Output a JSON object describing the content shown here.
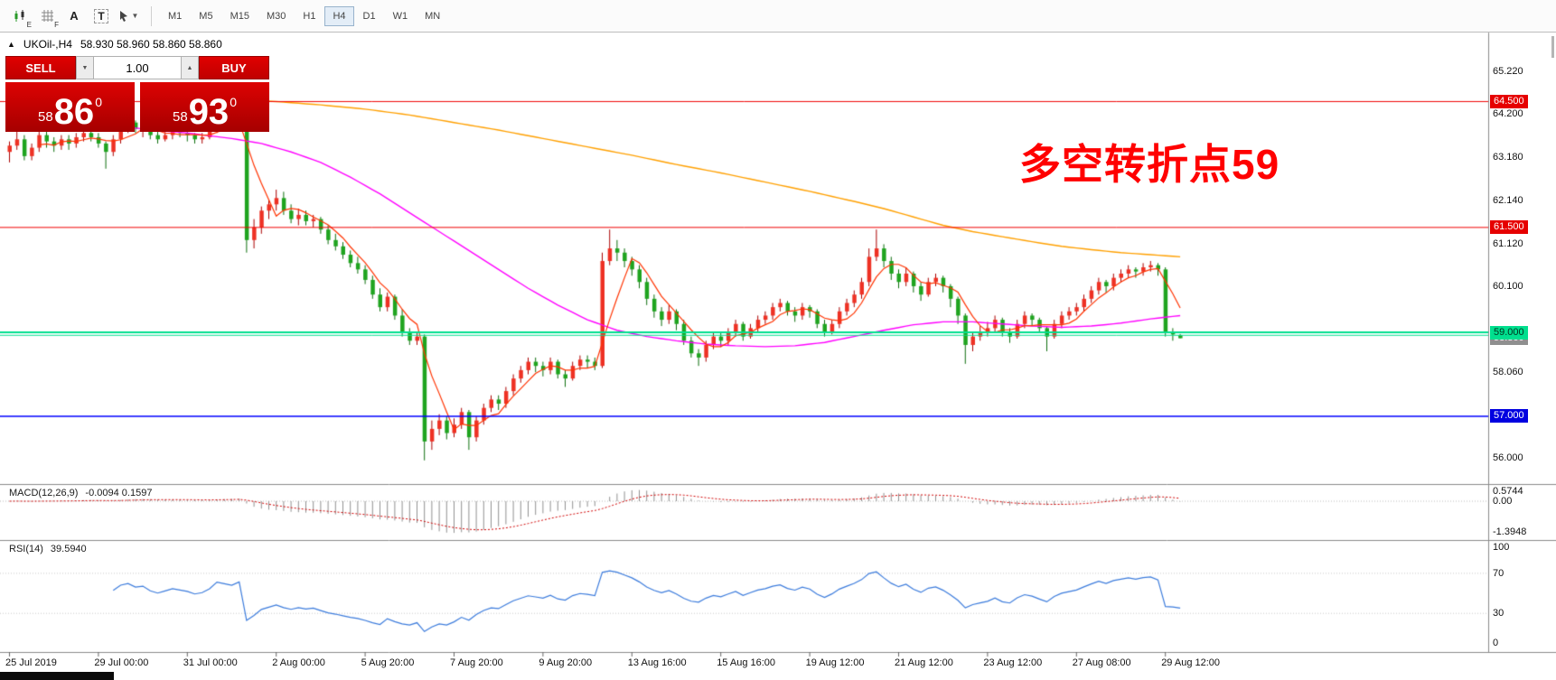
{
  "toolbar": {
    "icons": [
      {
        "id": "chart-candles-icon",
        "badge": "E"
      },
      {
        "id": "grid-icon",
        "badge": "F"
      },
      {
        "id": "text-tool-icon",
        "badge": "A"
      },
      {
        "id": "textbox-tool-icon",
        "badge": "T"
      }
    ],
    "dropdown_caret": "▼",
    "timeframes": [
      "M1",
      "M5",
      "M15",
      "M30",
      "H1",
      "H4",
      "D1",
      "W1",
      "MN"
    ],
    "active_timeframe": "H4"
  },
  "chart": {
    "collapse_icon": "▲",
    "title_symbol": "UKOil-,H4",
    "title_quotes": "58.930 58.960 58.860 58.860",
    "annotation": {
      "text": "多空转折点59",
      "color": "#ff0000"
    },
    "trade_panel": {
      "sell_label": "SELL",
      "buy_label": "BUY",
      "volume": "1.00",
      "step_down": "▼",
      "step_up": "▲",
      "bid": {
        "prefix": "58",
        "big": "86",
        "sup": "0"
      },
      "ask": {
        "prefix": "58",
        "big": "93",
        "sup": "0"
      }
    }
  },
  "chart_data": {
    "type": "candlestick",
    "symbol": "UKOil-",
    "period": "H4",
    "ylim": [
      55.4,
      66.15
    ],
    "bull_color": "#ee3124",
    "bear_color": "#1fa41f",
    "price_axis_labels": [
      {
        "text": "65.220",
        "price": 65.22
      },
      {
        "text": "64.200",
        "price": 64.2
      },
      {
        "text": "63.180",
        "price": 63.18
      },
      {
        "text": "62.140",
        "price": 62.14
      },
      {
        "text": "61.120",
        "price": 61.12
      },
      {
        "text": "60.100",
        "price": 60.1
      },
      {
        "text": "58.060",
        "price": 58.06
      },
      {
        "text": "56.000",
        "price": 56.0
      }
    ],
    "price_badges": [
      {
        "text": "64.500",
        "price": 64.5,
        "bg": "#e60000",
        "fg": "#ffffff"
      },
      {
        "text": "61.500",
        "price": 61.5,
        "bg": "#e60000",
        "fg": "#ffffff"
      },
      {
        "text": "58.860",
        "price": 58.86,
        "bg": "#8f8f8f",
        "fg": "#ffffff"
      },
      {
        "text": "59.000",
        "price": 59.0,
        "bg": "#00df8e",
        "fg": "#00331f"
      },
      {
        "text": "57.000",
        "price": 57.0,
        "bg": "#0000e0",
        "fg": "#ffffff"
      }
    ],
    "hlines": [
      {
        "price": 64.5,
        "color": "#f00000",
        "width": 1
      },
      {
        "price": 61.5,
        "color": "#f00000",
        "width": 1
      },
      {
        "price": 59.0,
        "color": "#00df8e",
        "width": 2
      },
      {
        "price": 58.93,
        "color": "#00df8e",
        "width": 1
      },
      {
        "price": 57.0,
        "color": "#0000ff",
        "width": 1.4
      }
    ],
    "time_labels": [
      "25 Jul 2019",
      "29 Jul 00:00",
      "31 Jul 00:00",
      "2 Aug 00:00",
      "5 Aug 20:00",
      "7 Aug 20:00",
      "9 Aug 20:00",
      "13 Aug 16:00",
      "15 Aug 16:00",
      "19 Aug 12:00",
      "21 Aug 12:00",
      "23 Aug 12:00",
      "27 Aug 08:00",
      "29 Aug 12:00"
    ],
    "candles_per_time_label": 12,
    "candles": [
      [
        63.3,
        63.55,
        63.05,
        63.45
      ],
      [
        63.45,
        64.35,
        63.35,
        63.6
      ],
      [
        63.6,
        63.7,
        63.1,
        63.2
      ],
      [
        63.2,
        63.5,
        63.1,
        63.4
      ],
      [
        63.4,
        63.8,
        63.3,
        63.7
      ],
      [
        63.7,
        63.8,
        63.4,
        63.55
      ],
      [
        63.55,
        63.65,
        63.3,
        63.45
      ],
      [
        63.45,
        63.7,
        63.35,
        63.6
      ],
      [
        63.6,
        63.7,
        63.35,
        63.5
      ],
      [
        63.5,
        63.75,
        63.4,
        63.65
      ],
      [
        63.65,
        63.85,
        63.55,
        63.75
      ],
      [
        63.75,
        63.85,
        63.55,
        63.65
      ],
      [
        63.65,
        63.75,
        63.4,
        63.5
      ],
      [
        63.5,
        63.55,
        62.9,
        63.3
      ],
      [
        63.3,
        63.7,
        63.2,
        63.6
      ],
      [
        63.6,
        63.95,
        63.5,
        63.9
      ],
      [
        63.9,
        64.05,
        63.75,
        64.0
      ],
      [
        64.0,
        64.05,
        63.75,
        63.85
      ],
      [
        63.85,
        63.95,
        63.65,
        63.9
      ],
      [
        63.9,
        63.95,
        63.6,
        63.7
      ],
      [
        63.7,
        63.8,
        63.5,
        63.6
      ],
      [
        63.6,
        63.8,
        63.55,
        63.7
      ],
      [
        63.7,
        63.9,
        63.6,
        63.8
      ],
      [
        63.8,
        63.9,
        63.65,
        63.75
      ],
      [
        63.75,
        63.85,
        63.55,
        63.7
      ],
      [
        63.7,
        63.75,
        63.5,
        63.6
      ],
      [
        63.6,
        63.75,
        63.5,
        63.65
      ],
      [
        63.65,
        63.9,
        63.6,
        63.8
      ],
      [
        63.8,
        64.45,
        63.75,
        64.1
      ],
      [
        64.1,
        64.2,
        63.95,
        64.05
      ],
      [
        64.05,
        64.15,
        63.9,
        64.0
      ],
      [
        64.0,
        64.3,
        63.95,
        64.15
      ],
      [
        64.15,
        64.2,
        60.9,
        61.2
      ],
      [
        61.2,
        61.7,
        61.0,
        61.5
      ],
      [
        61.5,
        62.0,
        61.35,
        61.9
      ],
      [
        61.9,
        62.15,
        61.7,
        62.05
      ],
      [
        62.05,
        62.4,
        61.9,
        62.2
      ],
      [
        62.2,
        62.35,
        61.8,
        61.9
      ],
      [
        61.9,
        62.05,
        61.6,
        61.7
      ],
      [
        61.7,
        61.95,
        61.55,
        61.8
      ],
      [
        61.8,
        61.9,
        61.55,
        61.65
      ],
      [
        61.65,
        61.8,
        61.5,
        61.7
      ],
      [
        61.7,
        61.75,
        61.35,
        61.45
      ],
      [
        61.45,
        61.55,
        61.1,
        61.2
      ],
      [
        61.2,
        61.35,
        60.95,
        61.05
      ],
      [
        61.05,
        61.15,
        60.75,
        60.85
      ],
      [
        60.85,
        60.95,
        60.55,
        60.65
      ],
      [
        60.65,
        60.8,
        60.4,
        60.5
      ],
      [
        60.5,
        60.6,
        60.15,
        60.25
      ],
      [
        60.25,
        60.35,
        59.8,
        59.9
      ],
      [
        59.9,
        60.05,
        59.5,
        59.6
      ],
      [
        59.6,
        59.95,
        59.5,
        59.85
      ],
      [
        59.85,
        59.9,
        59.3,
        59.4
      ],
      [
        59.4,
        59.55,
        58.9,
        59.0
      ],
      [
        59.0,
        59.1,
        58.7,
        58.8
      ],
      [
        58.8,
        59.0,
        58.7,
        58.9
      ],
      [
        58.9,
        58.95,
        55.95,
        56.4
      ],
      [
        56.4,
        56.9,
        56.2,
        56.7
      ],
      [
        56.7,
        57.05,
        56.55,
        56.9
      ],
      [
        56.9,
        57.0,
        56.45,
        56.6
      ],
      [
        56.6,
        56.95,
        56.5,
        56.8
      ],
      [
        56.8,
        57.2,
        56.7,
        57.1
      ],
      [
        57.1,
        57.15,
        56.2,
        56.5
      ],
      [
        56.5,
        57.0,
        56.4,
        56.9
      ],
      [
        56.9,
        57.3,
        56.8,
        57.2
      ],
      [
        57.2,
        57.5,
        57.1,
        57.4
      ],
      [
        57.4,
        57.5,
        57.15,
        57.3
      ],
      [
        57.3,
        57.7,
        57.2,
        57.6
      ],
      [
        57.6,
        58.0,
        57.5,
        57.9
      ],
      [
        57.9,
        58.2,
        57.8,
        58.1
      ],
      [
        58.1,
        58.4,
        58.0,
        58.3
      ],
      [
        58.3,
        58.4,
        58.05,
        58.2
      ],
      [
        58.2,
        58.3,
        57.95,
        58.1
      ],
      [
        58.1,
        58.4,
        58.0,
        58.3
      ],
      [
        58.3,
        58.35,
        57.9,
        58.0
      ],
      [
        58.0,
        58.1,
        57.7,
        57.9
      ],
      [
        57.9,
        58.3,
        57.85,
        58.2
      ],
      [
        58.2,
        58.45,
        58.1,
        58.35
      ],
      [
        58.35,
        58.45,
        58.15,
        58.3
      ],
      [
        58.3,
        58.4,
        58.1,
        58.2
      ],
      [
        58.2,
        60.9,
        58.15,
        60.7
      ],
      [
        60.7,
        61.45,
        60.6,
        61.0
      ],
      [
        61.0,
        61.2,
        60.7,
        60.9
      ],
      [
        60.9,
        61.0,
        60.55,
        60.7
      ],
      [
        60.7,
        60.8,
        60.35,
        60.5
      ],
      [
        60.5,
        60.6,
        60.05,
        60.2
      ],
      [
        60.2,
        60.3,
        59.65,
        59.8
      ],
      [
        59.8,
        59.9,
        59.35,
        59.5
      ],
      [
        59.5,
        59.6,
        59.15,
        59.3
      ],
      [
        59.3,
        59.65,
        59.2,
        59.5
      ],
      [
        59.5,
        59.55,
        59.05,
        59.2
      ],
      [
        59.2,
        59.3,
        58.7,
        58.8
      ],
      [
        58.8,
        58.9,
        58.4,
        58.5
      ],
      [
        58.5,
        58.6,
        58.2,
        58.4
      ],
      [
        58.4,
        58.8,
        58.3,
        58.7
      ],
      [
        58.7,
        59.0,
        58.6,
        58.9
      ],
      [
        58.9,
        59.0,
        58.65,
        58.8
      ],
      [
        58.8,
        59.1,
        58.7,
        59.0
      ],
      [
        59.0,
        59.3,
        58.9,
        59.2
      ],
      [
        59.2,
        59.25,
        58.8,
        58.9
      ],
      [
        58.9,
        59.2,
        58.85,
        59.1
      ],
      [
        59.1,
        59.4,
        59.0,
        59.3
      ],
      [
        59.3,
        59.5,
        59.2,
        59.4
      ],
      [
        59.4,
        59.7,
        59.3,
        59.6
      ],
      [
        59.6,
        59.8,
        59.5,
        59.7
      ],
      [
        59.7,
        59.75,
        59.4,
        59.5
      ],
      [
        59.5,
        59.6,
        59.25,
        59.4
      ],
      [
        59.4,
        59.7,
        59.3,
        59.6
      ],
      [
        59.6,
        59.65,
        59.35,
        59.5
      ],
      [
        59.5,
        59.55,
        59.1,
        59.2
      ],
      [
        59.2,
        59.3,
        58.9,
        59.0
      ],
      [
        59.0,
        59.3,
        58.95,
        59.2
      ],
      [
        59.2,
        59.6,
        59.1,
        59.5
      ],
      [
        59.5,
        59.8,
        59.4,
        59.7
      ],
      [
        59.7,
        60.0,
        59.6,
        59.9
      ],
      [
        59.9,
        60.3,
        59.8,
        60.2
      ],
      [
        60.2,
        61.0,
        60.1,
        60.8
      ],
      [
        60.8,
        61.45,
        60.7,
        61.0
      ],
      [
        61.0,
        61.1,
        60.55,
        60.7
      ],
      [
        60.7,
        60.8,
        60.25,
        60.4
      ],
      [
        60.4,
        60.5,
        60.05,
        60.2
      ],
      [
        60.2,
        60.55,
        60.1,
        60.4
      ],
      [
        60.4,
        60.45,
        59.95,
        60.1
      ],
      [
        60.1,
        60.2,
        59.75,
        59.9
      ],
      [
        59.9,
        60.3,
        59.85,
        60.2
      ],
      [
        60.2,
        60.4,
        60.1,
        60.3
      ],
      [
        60.3,
        60.35,
        59.95,
        60.1
      ],
      [
        60.1,
        60.15,
        59.6,
        59.8
      ],
      [
        59.8,
        59.85,
        59.2,
        59.4
      ],
      [
        59.4,
        59.45,
        58.25,
        58.7
      ],
      [
        58.7,
        59.0,
        58.55,
        58.9
      ],
      [
        58.9,
        59.15,
        58.8,
        59.0
      ],
      [
        59.0,
        59.25,
        58.9,
        59.1
      ],
      [
        59.1,
        59.4,
        59.0,
        59.3
      ],
      [
        59.3,
        59.35,
        58.9,
        59.0
      ],
      [
        59.0,
        59.1,
        58.75,
        58.9
      ],
      [
        58.9,
        59.3,
        58.85,
        59.2
      ],
      [
        59.2,
        59.5,
        59.1,
        59.4
      ],
      [
        59.4,
        59.45,
        59.15,
        59.3
      ],
      [
        59.3,
        59.35,
        59.0,
        59.1
      ],
      [
        59.1,
        59.15,
        58.55,
        58.9
      ],
      [
        58.9,
        59.3,
        58.85,
        59.2
      ],
      [
        59.2,
        59.5,
        59.1,
        59.4
      ],
      [
        59.4,
        59.6,
        59.3,
        59.5
      ],
      [
        59.5,
        59.7,
        59.4,
        59.6
      ],
      [
        59.6,
        59.9,
        59.5,
        59.8
      ],
      [
        59.8,
        60.1,
        59.7,
        60.0
      ],
      [
        60.0,
        60.3,
        59.9,
        60.2
      ],
      [
        60.2,
        60.25,
        59.95,
        60.1
      ],
      [
        60.1,
        60.4,
        60.0,
        60.3
      ],
      [
        60.3,
        60.5,
        60.2,
        60.4
      ],
      [
        60.4,
        60.6,
        60.3,
        60.5
      ],
      [
        60.5,
        60.55,
        60.3,
        60.45
      ],
      [
        60.45,
        60.65,
        60.35,
        60.55
      ],
      [
        60.55,
        60.7,
        60.45,
        60.6
      ],
      [
        60.6,
        60.65,
        60.35,
        60.5
      ],
      [
        60.5,
        60.55,
        58.9,
        59.0
      ],
      [
        59.0,
        59.1,
        58.8,
        58.95
      ],
      [
        58.93,
        58.96,
        58.86,
        58.86
      ]
    ],
    "ma_fast": {
      "color": "#ff3300",
      "period": 5
    },
    "ma_medium": {
      "color": "#ff00ff",
      "points": [
        [
          12,
          63.95
        ],
        [
          18,
          63.85
        ],
        [
          24,
          63.75
        ],
        [
          30,
          63.62
        ],
        [
          34,
          63.5
        ],
        [
          38,
          63.3
        ],
        [
          42,
          63.05
        ],
        [
          46,
          62.7
        ],
        [
          50,
          62.3
        ],
        [
          54,
          61.85
        ],
        [
          58,
          61.4
        ],
        [
          62,
          60.95
        ],
        [
          66,
          60.5
        ],
        [
          70,
          60.05
        ],
        [
          74,
          59.65
        ],
        [
          78,
          59.3
        ],
        [
          82,
          59.05
        ],
        [
          86,
          58.9
        ],
        [
          90,
          58.8
        ],
        [
          94,
          58.72
        ],
        [
          98,
          58.68
        ],
        [
          102,
          58.66
        ],
        [
          106,
          58.68
        ],
        [
          110,
          58.76
        ],
        [
          114,
          58.9
        ],
        [
          118,
          59.05
        ],
        [
          122,
          59.18
        ],
        [
          126,
          59.25
        ],
        [
          130,
          59.25
        ],
        [
          134,
          59.2
        ],
        [
          138,
          59.15
        ],
        [
          142,
          59.12
        ],
        [
          146,
          59.15
        ],
        [
          150,
          59.22
        ],
        [
          154,
          59.32
        ],
        [
          158,
          59.4
        ]
      ]
    },
    "ma_slow": {
      "color": "#ffa000",
      "points": [
        [
          24,
          64.6
        ],
        [
          30,
          64.55
        ],
        [
          36,
          64.5
        ],
        [
          42,
          64.42
        ],
        [
          48,
          64.32
        ],
        [
          54,
          64.18
        ],
        [
          60,
          64.0
        ],
        [
          66,
          63.82
        ],
        [
          72,
          63.62
        ],
        [
          78,
          63.42
        ],
        [
          84,
          63.22
        ],
        [
          90,
          63.0
        ],
        [
          96,
          62.8
        ],
        [
          102,
          62.58
        ],
        [
          108,
          62.36
        ],
        [
          114,
          62.12
        ],
        [
          118,
          61.95
        ],
        [
          122,
          61.75
        ],
        [
          126,
          61.55
        ],
        [
          130,
          61.4
        ],
        [
          134,
          61.28
        ],
        [
          138,
          61.16
        ],
        [
          142,
          61.05
        ],
        [
          146,
          60.97
        ],
        [
          150,
          60.9
        ],
        [
          154,
          60.85
        ],
        [
          158,
          60.8
        ]
      ]
    },
    "macd_panel": {
      "label": "MACD(12,26,9)",
      "values": "-0.0094 0.1597",
      "params": [
        12,
        26,
        9
      ],
      "axis": [
        {
          "text": "0.5744",
          "v": 0.5744
        },
        {
          "text": "0.00",
          "v": 0
        },
        {
          "text": "-1.3948",
          "v": -1.3948
        }
      ],
      "hist_color": "#909090",
      "signal_color": "#d00000"
    },
    "rsi_panel": {
      "label": "RSI(14)",
      "value": "39.5940",
      "period": 14,
      "axis": [
        {
          "text": "100",
          "v": 100
        },
        {
          "text": "70",
          "v": 70
        },
        {
          "text": "30",
          "v": 30
        },
        {
          "text": "0",
          "v": 0
        }
      ],
      "levels": [
        70,
        30
      ],
      "line_color": "#3b7bdc"
    }
  }
}
